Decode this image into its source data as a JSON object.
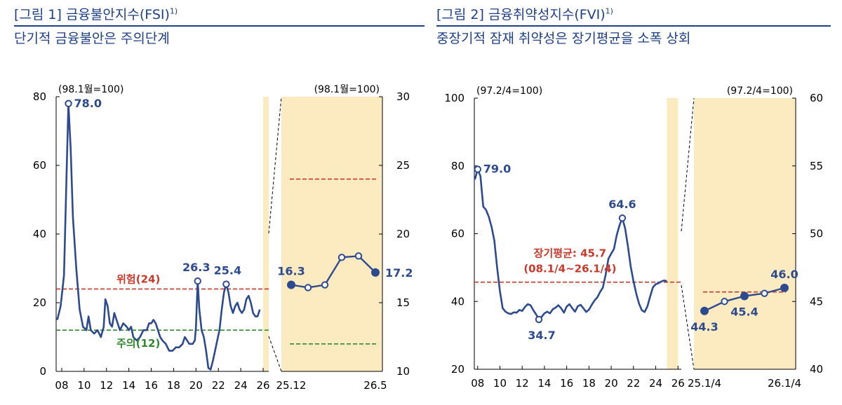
{
  "figures": [
    {
      "title": "[그림 1] 금융불안지수(FSI)",
      "title_sup": "1)",
      "subtitle": "단기적 금융불안은 주의단계"
    },
    {
      "title": "[그림 2] 금융취약성지수(FVI)",
      "title_sup": "1)",
      "subtitle": "중장기적 잠재 취약성은 장기평균을 소폭 상회"
    }
  ],
  "chart_data": [
    {
      "type": "line",
      "name": "fsi-main",
      "unit_label": "(98.1월=100)",
      "ylim": [
        0,
        80
      ],
      "yticks": [
        0,
        20,
        40,
        60,
        80
      ],
      "xlim": [
        2007.5,
        2026.5
      ],
      "xticks": [
        "08",
        "10",
        "12",
        "14",
        "16",
        "18",
        "20",
        "22",
        "24",
        "26"
      ],
      "xtick_values": [
        2008,
        2010,
        2012,
        2014,
        2016,
        2018,
        2020,
        2022,
        2024,
        2026
      ],
      "line_color": "#2e4a8f",
      "highlight_range": [
        2026.0,
        2026.5
      ],
      "highlight_color": "#fcebc1",
      "reference_lines": [
        {
          "label": "위험(24)",
          "value": 24,
          "color": "#c8392b"
        },
        {
          "label": "주의(12)",
          "value": 12,
          "color": "#2f8a2f"
        }
      ],
      "points": [
        [
          2007.6,
          15
        ],
        [
          2007.9,
          19
        ],
        [
          2008.2,
          28
        ],
        [
          2008.45,
          60
        ],
        [
          2008.6,
          78
        ],
        [
          2008.8,
          65
        ],
        [
          2009.0,
          45
        ],
        [
          2009.3,
          30
        ],
        [
          2009.6,
          18
        ],
        [
          2009.9,
          13
        ],
        [
          2010.2,
          12
        ],
        [
          2010.4,
          16
        ],
        [
          2010.6,
          12
        ],
        [
          2010.9,
          11
        ],
        [
          2011.2,
          12
        ],
        [
          2011.5,
          10
        ],
        [
          2011.75,
          13
        ],
        [
          2011.9,
          21
        ],
        [
          2012.1,
          19
        ],
        [
          2012.3,
          14
        ],
        [
          2012.5,
          13
        ],
        [
          2012.7,
          17
        ],
        [
          2012.9,
          15
        ],
        [
          2013.2,
          12
        ],
        [
          2013.5,
          14
        ],
        [
          2013.8,
          13
        ],
        [
          2014.0,
          12
        ],
        [
          2014.2,
          13
        ],
        [
          2014.4,
          10
        ],
        [
          2014.7,
          9
        ],
        [
          2015.0,
          10
        ],
        [
          2015.3,
          12
        ],
        [
          2015.6,
          12
        ],
        [
          2015.8,
          14
        ],
        [
          2016.0,
          14
        ],
        [
          2016.2,
          15
        ],
        [
          2016.4,
          14
        ],
        [
          2016.6,
          12
        ],
        [
          2016.8,
          10
        ],
        [
          2017.0,
          9
        ],
        [
          2017.3,
          8
        ],
        [
          2017.6,
          6
        ],
        [
          2017.9,
          6
        ],
        [
          2018.2,
          7
        ],
        [
          2018.5,
          7
        ],
        [
          2018.8,
          8
        ],
        [
          2019.0,
          10
        ],
        [
          2019.2,
          9
        ],
        [
          2019.4,
          8
        ],
        [
          2019.7,
          8
        ],
        [
          2019.9,
          9
        ],
        [
          2020.0,
          13
        ],
        [
          2020.15,
          26.3
        ],
        [
          2020.3,
          18
        ],
        [
          2020.5,
          12
        ],
        [
          2020.7,
          10
        ],
        [
          2020.9,
          6
        ],
        [
          2021.1,
          1
        ],
        [
          2021.3,
          0.5
        ],
        [
          2021.5,
          3
        ],
        [
          2021.7,
          6
        ],
        [
          2021.9,
          9
        ],
        [
          2022.1,
          12
        ],
        [
          2022.3,
          18
        ],
        [
          2022.5,
          23
        ],
        [
          2022.7,
          25.4
        ],
        [
          2022.9,
          23
        ],
        [
          2023.1,
          19
        ],
        [
          2023.3,
          17
        ],
        [
          2023.5,
          19
        ],
        [
          2023.7,
          20
        ],
        [
          2023.9,
          18
        ],
        [
          2024.1,
          17
        ],
        [
          2024.3,
          18
        ],
        [
          2024.5,
          21
        ],
        [
          2024.7,
          22
        ],
        [
          2024.9,
          20
        ],
        [
          2025.1,
          17
        ],
        [
          2025.3,
          16
        ],
        [
          2025.5,
          16
        ],
        [
          2025.7,
          18
        ]
      ],
      "annotations": [
        {
          "x": 2008.6,
          "y": 78.0,
          "text": "78.0"
        },
        {
          "x": 2020.15,
          "y": 26.3,
          "text": "26.3"
        },
        {
          "x": 2022.7,
          "y": 25.4,
          "text": "25.4"
        }
      ]
    },
    {
      "type": "line",
      "name": "fsi-zoom",
      "unit_label": "(98.1월=100)",
      "ylim": [
        10,
        30
      ],
      "yticks": [
        10,
        15,
        20,
        25,
        30
      ],
      "x_categories": [
        "25.12",
        "26.1",
        "26.2",
        "26.3",
        "26.4",
        "26.5"
      ],
      "xticks_shown": [
        "25.12",
        "26.5"
      ],
      "highlight_color": "#fcebc1",
      "reference_lines": [
        {
          "value": 24,
          "color": "#c8392b"
        },
        {
          "value": 12,
          "color": "#2f8a2f"
        }
      ],
      "values": [
        16.3,
        16.1,
        16.3,
        18.3,
        18.4,
        17.2
      ],
      "annotations": [
        {
          "index": 0,
          "text": "16.3"
        },
        {
          "index": 5,
          "text": "17.2"
        }
      ]
    },
    {
      "type": "line",
      "name": "fvi-main",
      "unit_label": "(97.2/4=100)",
      "ylim": [
        20,
        100
      ],
      "yticks": [
        20,
        40,
        60,
        80,
        100
      ],
      "xlim": [
        2007.7,
        2026.3
      ],
      "xticks": [
        "08",
        "10",
        "12",
        "14",
        "16",
        "18",
        "20",
        "22",
        "24",
        "26"
      ],
      "xtick_values": [
        2008,
        2010,
        2012,
        2014,
        2016,
        2018,
        2020,
        2022,
        2024,
        2026
      ],
      "highlight_range": [
        2025.0,
        2026.0
      ],
      "highlight_color": "#fcebc1",
      "reference_lines": [
        {
          "label": "장기평균: 45.7",
          "label2": "(08.1/4~26.1/4)",
          "value": 45.7,
          "color": "#c8392b"
        }
      ],
      "points": [
        [
          2007.75,
          76
        ],
        [
          2008.0,
          79
        ],
        [
          2008.25,
          77
        ],
        [
          2008.5,
          68
        ],
        [
          2008.75,
          67
        ],
        [
          2009.0,
          65
        ],
        [
          2009.25,
          62
        ],
        [
          2009.5,
          58
        ],
        [
          2009.75,
          50
        ],
        [
          2010.0,
          43
        ],
        [
          2010.25,
          38
        ],
        [
          2010.5,
          37
        ],
        [
          2010.75,
          36.5
        ],
        [
          2011.0,
          36.3
        ],
        [
          2011.25,
          36.8
        ],
        [
          2011.5,
          36.7
        ],
        [
          2011.75,
          37.5
        ],
        [
          2012.0,
          37.2
        ],
        [
          2012.25,
          38.4
        ],
        [
          2012.5,
          39.2
        ],
        [
          2012.75,
          38.9
        ],
        [
          2013.0,
          37.4
        ],
        [
          2013.25,
          36.2
        ],
        [
          2013.5,
          34.7
        ],
        [
          2013.75,
          35.5
        ],
        [
          2014.0,
          36.5
        ],
        [
          2014.25,
          37.0
        ],
        [
          2014.5,
          36.5
        ],
        [
          2014.75,
          37.7
        ],
        [
          2015.0,
          38.2
        ],
        [
          2015.25,
          38.9
        ],
        [
          2015.5,
          38.0
        ],
        [
          2015.75,
          36.7
        ],
        [
          2016.0,
          38.5
        ],
        [
          2016.25,
          39.2
        ],
        [
          2016.5,
          38.0
        ],
        [
          2016.75,
          37.0
        ],
        [
          2017.0,
          38.6
        ],
        [
          2017.25,
          39.0
        ],
        [
          2017.5,
          38.0
        ],
        [
          2017.75,
          36.9
        ],
        [
          2018.0,
          37.6
        ],
        [
          2018.25,
          39.0
        ],
        [
          2018.5,
          40.3
        ],
        [
          2018.75,
          41.2
        ],
        [
          2019.0,
          42.8
        ],
        [
          2019.25,
          44.1
        ],
        [
          2019.5,
          47.9
        ],
        [
          2019.75,
          52.6
        ],
        [
          2020.0,
          54.1
        ],
        [
          2020.25,
          55.5
        ],
        [
          2020.5,
          59.6
        ],
        [
          2020.75,
          62.5
        ],
        [
          2021.0,
          64.6
        ],
        [
          2021.25,
          61.6
        ],
        [
          2021.5,
          56.3
        ],
        [
          2021.75,
          50.4
        ],
        [
          2022.0,
          46.0
        ],
        [
          2022.25,
          42.3
        ],
        [
          2022.5,
          39.4
        ],
        [
          2022.75,
          37.4
        ],
        [
          2023.0,
          36.9
        ],
        [
          2023.25,
          38.5
        ],
        [
          2023.5,
          41.5
        ],
        [
          2023.75,
          44.2
        ],
        [
          2024.0,
          45.1
        ],
        [
          2024.25,
          45.4
        ],
        [
          2024.5,
          45.9
        ],
        [
          2024.75,
          46.2
        ],
        [
          2025.0,
          46.0
        ]
      ],
      "annotations": [
        {
          "x": 2008.0,
          "y": 79.0,
          "text": "79.0"
        },
        {
          "x": 2013.5,
          "y": 34.7,
          "text": "34.7"
        },
        {
          "x": 2021.0,
          "y": 64.6,
          "text": "64.6"
        }
      ]
    },
    {
      "type": "line",
      "name": "fvi-zoom",
      "unit_label": "(97.2/4=100)",
      "ylim": [
        40,
        60
      ],
      "yticks": [
        40,
        45,
        50,
        55,
        60
      ],
      "x_categories": [
        "25.1/4",
        "25.2/4",
        "25.3/4",
        "25.4/4",
        "26.1/4"
      ],
      "xticks_shown": [
        "25.1/4",
        "26.1/4"
      ],
      "highlight_color": "#fcebc1",
      "reference_lines": [
        {
          "value": 45.7,
          "color": "#c8392b"
        }
      ],
      "values": [
        44.3,
        45.0,
        45.4,
        45.6,
        46.0
      ],
      "annotations": [
        {
          "index": 0,
          "text": "44.3"
        },
        {
          "index": 2,
          "text": "45.4"
        },
        {
          "index": 4,
          "text": "46.0"
        }
      ]
    }
  ]
}
